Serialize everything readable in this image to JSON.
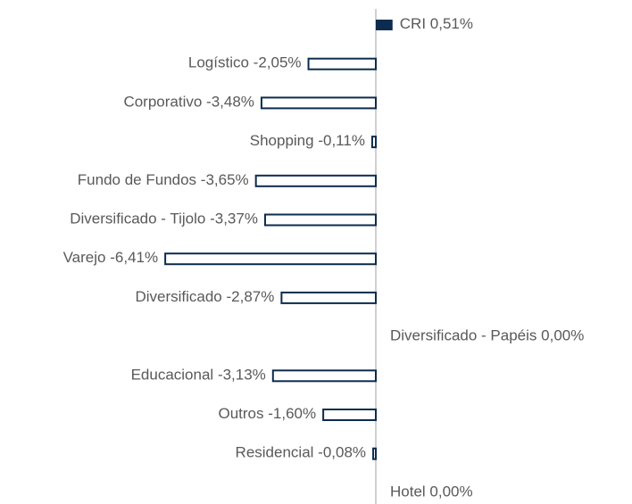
{
  "chart_data": {
    "type": "bar",
    "orientation": "horizontal",
    "categories": [
      "CRI",
      "Logístico",
      "Corporativo",
      "Shopping",
      "Fundo de Fundos",
      "Diversificado - Tijolo",
      "Varejo",
      "Diversificado",
      "Diversificado - Papéis",
      "Educacional",
      "Outros",
      "Residencial",
      "Hotel"
    ],
    "values": [
      0.51,
      -2.05,
      -3.48,
      -0.11,
      -3.65,
      -3.37,
      -6.41,
      -2.87,
      0.0,
      -3.13,
      -1.6,
      -0.08,
      0.0
    ],
    "value_labels": [
      "0,51%",
      "-2,05%",
      "-3,48%",
      "-0,11%",
      "-3,65%",
      "-3,37%",
      "-6,41%",
      "-2,87%",
      "0,00%",
      "-3,13%",
      "-1,60%",
      "-0,08%",
      "0,00%"
    ],
    "color": "#0d2b4e"
  }
}
